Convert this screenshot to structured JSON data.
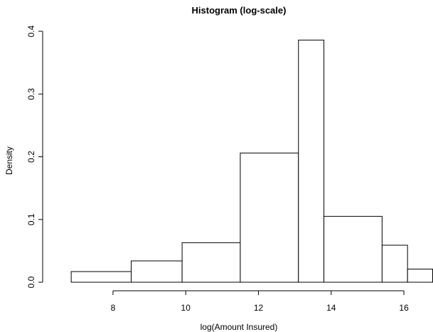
{
  "chart_data": {
    "type": "histogram",
    "title": "Histogram (log-scale)",
    "xlabel": "log(Amount Insured)",
    "ylabel": "Density",
    "xlim": [
      6.3,
      16.8
    ],
    "ylim": [
      0,
      0.4
    ],
    "x_ticks": [
      8,
      10,
      12,
      14,
      16
    ],
    "y_ticks": [
      0.0,
      0.1,
      0.2,
      0.3,
      0.4
    ],
    "x_tick_labels": [
      "8",
      "10",
      "12",
      "14",
      "16"
    ],
    "y_tick_labels": [
      "0.0",
      "0.1",
      "0.2",
      "0.3",
      "0.4"
    ],
    "bins": [
      {
        "x0": 6.85,
        "x1": 8.5,
        "density": 0.017
      },
      {
        "x0": 8.5,
        "x1": 9.9,
        "density": 0.034
      },
      {
        "x0": 9.9,
        "x1": 11.5,
        "density": 0.063
      },
      {
        "x0": 11.5,
        "x1": 13.1,
        "density": 0.206
      },
      {
        "x0": 13.1,
        "x1": 13.8,
        "density": 0.386
      },
      {
        "x0": 13.8,
        "x1": 15.4,
        "density": 0.105
      },
      {
        "x0": 15.4,
        "x1": 16.1,
        "density": 0.059
      },
      {
        "x0": 16.1,
        "x1": 16.8,
        "density": 0.021
      }
    ],
    "grid": false,
    "colors": {
      "bar_fill": "#ffffff",
      "bar_stroke": "#000000"
    }
  }
}
